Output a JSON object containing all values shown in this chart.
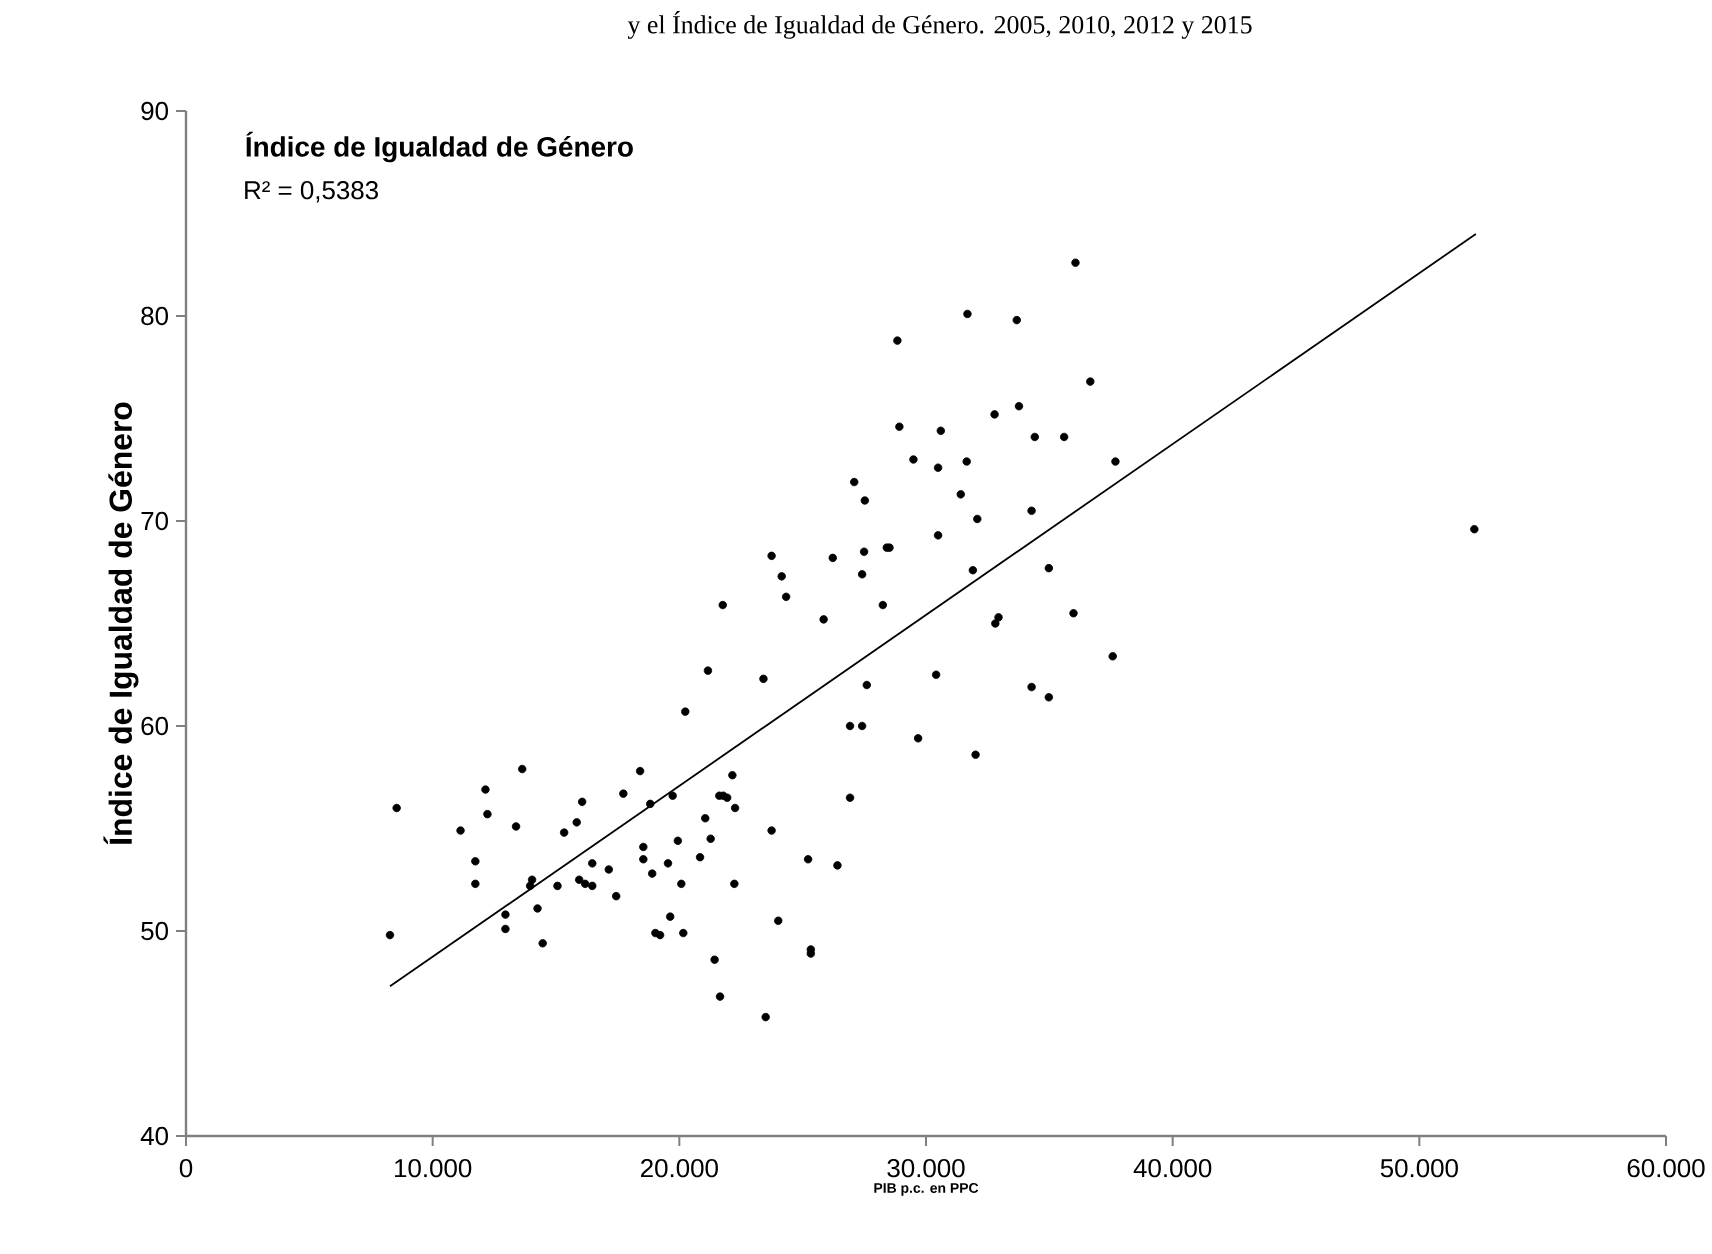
{
  "chart_data": {
    "type": "scatter",
    "title": "Índice de Igualdad de Género",
    "ylabel": "Índice de Igualdad de Género",
    "xlabel": "PIB p.c. en PPC",
    "annotations": [
      "R² = 0,5383",
      "y el Índice de Igualdad de Género. 2005, 2010, 2012 y 2015"
    ],
    "xlim": [
      0,
      60000
    ],
    "ylim": [
      40,
      90
    ],
    "xticks": [
      {
        "value": 0,
        "label": "0"
      },
      {
        "value": 10000,
        "label": "10.000"
      },
      {
        "value": 20000,
        "label": "20.000"
      },
      {
        "value": 30000,
        "label": "30.000"
      },
      {
        "value": 40000,
        "label": "40.000"
      },
      {
        "value": 50000,
        "label": "50.000"
      },
      {
        "value": 60000,
        "label": "60.000"
      }
    ],
    "yticks": [
      40,
      50,
      60,
      70,
      80,
      90
    ],
    "grid": false,
    "series": [
      {
        "color": "#000000",
        "marker": "circle",
        "x": [
          8270,
          8540,
          11130,
          11730,
          11730,
          12140,
          12220,
          13380,
          13630,
          12950,
          12950,
          13950,
          14030,
          14250,
          14460,
          15060,
          15330,
          15840,
          15940,
          16180,
          16470,
          16060,
          16470,
          17140,
          17440,
          17730,
          18410,
          18540,
          18540,
          18820,
          18900,
          19540,
          19730,
          19630,
          19030,
          19220,
          19940,
          20080,
          20160,
          20240,
          20840,
          21050,
          21160,
          21270,
          21430,
          21650,
          21620,
          21780,
          21940,
          21760,
          22150,
          22260,
          22230,
          23410,
          23500,
          23740,
          23740,
          24010,
          24150,
          24330,
          25220,
          25330,
          25330,
          25850,
          26220,
          26410,
          26920,
          26920,
          27410,
          27090,
          27520,
          27410,
          27490,
          27600,
          28250,
          28410,
          28520,
          28840,
          28920,
          29490,
          29680,
          30410,
          30490,
          30490,
          30600,
          31410,
          31680,
          31650,
          32080,
          31900,
          32010,
          32780,
          32810,
          32940,
          36060,
          33680,
          36660,
          33770,
          34410,
          35600,
          37680,
          34280,
          34980,
          35980,
          37570,
          34280,
          34980,
          52230
        ],
        "values": [
          49.8,
          56.0,
          54.9,
          53.4,
          52.3,
          56.9,
          55.7,
          55.1,
          57.9,
          50.8,
          50.1,
          52.2,
          52.5,
          51.1,
          49.4,
          52.2,
          54.8,
          55.3,
          52.5,
          52.3,
          52.2,
          56.3,
          53.3,
          53.0,
          51.7,
          56.7,
          57.8,
          54.1,
          53.5,
          56.2,
          52.8,
          53.3,
          56.6,
          50.7,
          49.9,
          49.8,
          54.4,
          52.3,
          49.9,
          60.7,
          53.6,
          55.5,
          62.7,
          54.5,
          48.6,
          46.8,
          56.6,
          56.6,
          56.5,
          65.9,
          57.6,
          56.0,
          52.3,
          62.3,
          45.8,
          68.3,
          54.9,
          50.5,
          67.3,
          66.3,
          53.5,
          49.1,
          48.9,
          65.2,
          68.2,
          53.2,
          56.5,
          60.0,
          60.0,
          71.9,
          71.0,
          67.4,
          68.5,
          62.0,
          65.9,
          68.7,
          68.7,
          78.8,
          74.6,
          73.0,
          59.4,
          62.5,
          69.3,
          72.6,
          74.4,
          71.3,
          80.1,
          72.9,
          70.1,
          67.6,
          58.6,
          75.2,
          65.0,
          65.3,
          82.6,
          79.8,
          76.8,
          75.6,
          74.1,
          74.1,
          72.9,
          70.5,
          67.7,
          65.5,
          63.4,
          61.9,
          61.4,
          69.6
        ]
      },
      {
        "type": "line",
        "color": "#000000",
        "marker": "none",
        "line_style": "solid",
        "x": [
          8270,
          52290
        ],
        "values": [
          47.3,
          84.0
        ]
      }
    ]
  }
}
